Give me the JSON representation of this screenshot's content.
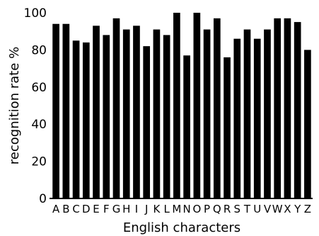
{
  "chart_data": {
    "type": "bar",
    "title": "",
    "xlabel": "English characters",
    "ylabel": "recognition rate %",
    "ylim": [
      0,
      100
    ],
    "yticks": [
      0,
      20,
      40,
      60,
      80,
      100
    ],
    "grid": false,
    "legend": "none",
    "bar_color": "#000000",
    "categories": [
      "A",
      "B",
      "C",
      "D",
      "E",
      "F",
      "G",
      "H",
      "I",
      "J",
      "K",
      "L",
      "M",
      "N",
      "O",
      "P",
      "Q",
      "R",
      "S",
      "T",
      "U",
      "V",
      "W",
      "X",
      "Y",
      "Z"
    ],
    "values": [
      94,
      94,
      85,
      84,
      93,
      88,
      97,
      91,
      93,
      82,
      91,
      88,
      100,
      77,
      100,
      91,
      97,
      76,
      86,
      91,
      86,
      91,
      97,
      97,
      95,
      80
    ]
  }
}
